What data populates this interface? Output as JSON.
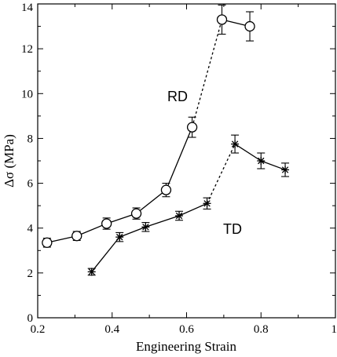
{
  "chart_data": {
    "type": "line",
    "xlabel": "Engineering Strain",
    "ylabel": "Δσ (MPa)",
    "xlim": [
      0.2,
      1.0
    ],
    "ylim": [
      0,
      14
    ],
    "x_ticks": [
      0.2,
      0.4,
      0.6,
      0.8,
      1.0
    ],
    "x_tick_labels": [
      "0.2",
      "0.4",
      "0.6",
      "0.8",
      "1"
    ],
    "y_ticks": [
      0,
      2,
      4,
      6,
      8,
      10,
      12,
      14
    ],
    "y_tick_labels": [
      "0",
      "2",
      "4",
      "6",
      "8",
      "10",
      "12",
      "14"
    ],
    "grid": false,
    "legend": "none",
    "series": [
      {
        "name": "RD",
        "marker": "open-circle",
        "color": "#000000",
        "x": [
          0.225,
          0.305,
          0.385,
          0.465,
          0.545,
          0.615,
          0.695,
          0.77
        ],
        "y": [
          3.35,
          3.65,
          4.2,
          4.65,
          5.7,
          8.5,
          13.3,
          13.0
        ],
        "yerr": [
          0.2,
          0.2,
          0.25,
          0.25,
          0.3,
          0.45,
          0.65,
          0.65
        ],
        "dashed_segments": [
          [
            5,
            6
          ]
        ]
      },
      {
        "name": "TD",
        "marker": "asterisk",
        "color": "#000000",
        "x": [
          0.345,
          0.42,
          0.49,
          0.58,
          0.655,
          0.73,
          0.8,
          0.865
        ],
        "y": [
          2.05,
          3.6,
          4.05,
          4.55,
          5.1,
          7.75,
          7.0,
          6.6
        ],
        "yerr": [
          0.15,
          0.2,
          0.2,
          0.2,
          0.25,
          0.4,
          0.35,
          0.3
        ],
        "dashed_segments": [
          [
            4,
            5
          ]
        ]
      }
    ]
  }
}
